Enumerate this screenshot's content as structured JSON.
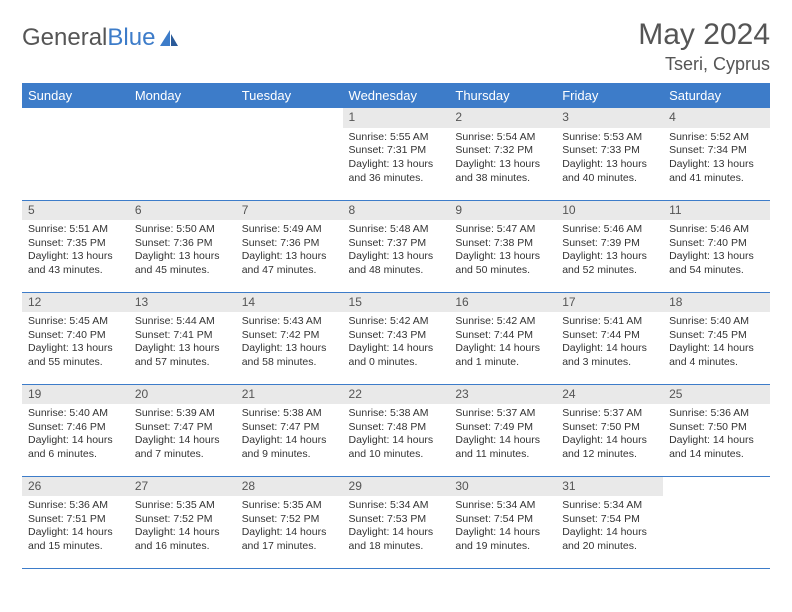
{
  "logo": {
    "text1": "General",
    "text2": "Blue"
  },
  "title": "May 2024",
  "location": "Tseri, Cyprus",
  "colors": {
    "accent": "#3d7cc9",
    "header_text": "#ffffff",
    "daynum_bg": "#e9e9e9",
    "text": "#333333",
    "muted": "#555555",
    "border": "#3d7cc9",
    "background": "#ffffff"
  },
  "fonts": {
    "title_size": 30,
    "location_size": 18,
    "th_size": 13,
    "daynum_size": 12,
    "body_size": 10.5
  },
  "day_headers": [
    "Sunday",
    "Monday",
    "Tuesday",
    "Wednesday",
    "Thursday",
    "Friday",
    "Saturday"
  ],
  "weeks": [
    [
      {
        "num": "",
        "lines": []
      },
      {
        "num": "",
        "lines": []
      },
      {
        "num": "",
        "lines": []
      },
      {
        "num": "1",
        "lines": [
          "Sunrise: 5:55 AM",
          "Sunset: 7:31 PM",
          "Daylight: 13 hours",
          "and 36 minutes."
        ]
      },
      {
        "num": "2",
        "lines": [
          "Sunrise: 5:54 AM",
          "Sunset: 7:32 PM",
          "Daylight: 13 hours",
          "and 38 minutes."
        ]
      },
      {
        "num": "3",
        "lines": [
          "Sunrise: 5:53 AM",
          "Sunset: 7:33 PM",
          "Daylight: 13 hours",
          "and 40 minutes."
        ]
      },
      {
        "num": "4",
        "lines": [
          "Sunrise: 5:52 AM",
          "Sunset: 7:34 PM",
          "Daylight: 13 hours",
          "and 41 minutes."
        ]
      }
    ],
    [
      {
        "num": "5",
        "lines": [
          "Sunrise: 5:51 AM",
          "Sunset: 7:35 PM",
          "Daylight: 13 hours",
          "and 43 minutes."
        ]
      },
      {
        "num": "6",
        "lines": [
          "Sunrise: 5:50 AM",
          "Sunset: 7:36 PM",
          "Daylight: 13 hours",
          "and 45 minutes."
        ]
      },
      {
        "num": "7",
        "lines": [
          "Sunrise: 5:49 AM",
          "Sunset: 7:36 PM",
          "Daylight: 13 hours",
          "and 47 minutes."
        ]
      },
      {
        "num": "8",
        "lines": [
          "Sunrise: 5:48 AM",
          "Sunset: 7:37 PM",
          "Daylight: 13 hours",
          "and 48 minutes."
        ]
      },
      {
        "num": "9",
        "lines": [
          "Sunrise: 5:47 AM",
          "Sunset: 7:38 PM",
          "Daylight: 13 hours",
          "and 50 minutes."
        ]
      },
      {
        "num": "10",
        "lines": [
          "Sunrise: 5:46 AM",
          "Sunset: 7:39 PM",
          "Daylight: 13 hours",
          "and 52 minutes."
        ]
      },
      {
        "num": "11",
        "lines": [
          "Sunrise: 5:46 AM",
          "Sunset: 7:40 PM",
          "Daylight: 13 hours",
          "and 54 minutes."
        ]
      }
    ],
    [
      {
        "num": "12",
        "lines": [
          "Sunrise: 5:45 AM",
          "Sunset: 7:40 PM",
          "Daylight: 13 hours",
          "and 55 minutes."
        ]
      },
      {
        "num": "13",
        "lines": [
          "Sunrise: 5:44 AM",
          "Sunset: 7:41 PM",
          "Daylight: 13 hours",
          "and 57 minutes."
        ]
      },
      {
        "num": "14",
        "lines": [
          "Sunrise: 5:43 AM",
          "Sunset: 7:42 PM",
          "Daylight: 13 hours",
          "and 58 minutes."
        ]
      },
      {
        "num": "15",
        "lines": [
          "Sunrise: 5:42 AM",
          "Sunset: 7:43 PM",
          "Daylight: 14 hours",
          "and 0 minutes."
        ]
      },
      {
        "num": "16",
        "lines": [
          "Sunrise: 5:42 AM",
          "Sunset: 7:44 PM",
          "Daylight: 14 hours",
          "and 1 minute."
        ]
      },
      {
        "num": "17",
        "lines": [
          "Sunrise: 5:41 AM",
          "Sunset: 7:44 PM",
          "Daylight: 14 hours",
          "and 3 minutes."
        ]
      },
      {
        "num": "18",
        "lines": [
          "Sunrise: 5:40 AM",
          "Sunset: 7:45 PM",
          "Daylight: 14 hours",
          "and 4 minutes."
        ]
      }
    ],
    [
      {
        "num": "19",
        "lines": [
          "Sunrise: 5:40 AM",
          "Sunset: 7:46 PM",
          "Daylight: 14 hours",
          "and 6 minutes."
        ]
      },
      {
        "num": "20",
        "lines": [
          "Sunrise: 5:39 AM",
          "Sunset: 7:47 PM",
          "Daylight: 14 hours",
          "and 7 minutes."
        ]
      },
      {
        "num": "21",
        "lines": [
          "Sunrise: 5:38 AM",
          "Sunset: 7:47 PM",
          "Daylight: 14 hours",
          "and 9 minutes."
        ]
      },
      {
        "num": "22",
        "lines": [
          "Sunrise: 5:38 AM",
          "Sunset: 7:48 PM",
          "Daylight: 14 hours",
          "and 10 minutes."
        ]
      },
      {
        "num": "23",
        "lines": [
          "Sunrise: 5:37 AM",
          "Sunset: 7:49 PM",
          "Daylight: 14 hours",
          "and 11 minutes."
        ]
      },
      {
        "num": "24",
        "lines": [
          "Sunrise: 5:37 AM",
          "Sunset: 7:50 PM",
          "Daylight: 14 hours",
          "and 12 minutes."
        ]
      },
      {
        "num": "25",
        "lines": [
          "Sunrise: 5:36 AM",
          "Sunset: 7:50 PM",
          "Daylight: 14 hours",
          "and 14 minutes."
        ]
      }
    ],
    [
      {
        "num": "26",
        "lines": [
          "Sunrise: 5:36 AM",
          "Sunset: 7:51 PM",
          "Daylight: 14 hours",
          "and 15 minutes."
        ]
      },
      {
        "num": "27",
        "lines": [
          "Sunrise: 5:35 AM",
          "Sunset: 7:52 PM",
          "Daylight: 14 hours",
          "and 16 minutes."
        ]
      },
      {
        "num": "28",
        "lines": [
          "Sunrise: 5:35 AM",
          "Sunset: 7:52 PM",
          "Daylight: 14 hours",
          "and 17 minutes."
        ]
      },
      {
        "num": "29",
        "lines": [
          "Sunrise: 5:34 AM",
          "Sunset: 7:53 PM",
          "Daylight: 14 hours",
          "and 18 minutes."
        ]
      },
      {
        "num": "30",
        "lines": [
          "Sunrise: 5:34 AM",
          "Sunset: 7:54 PM",
          "Daylight: 14 hours",
          "and 19 minutes."
        ]
      },
      {
        "num": "31",
        "lines": [
          "Sunrise: 5:34 AM",
          "Sunset: 7:54 PM",
          "Daylight: 14 hours",
          "and 20 minutes."
        ]
      },
      {
        "num": "",
        "lines": []
      }
    ]
  ]
}
